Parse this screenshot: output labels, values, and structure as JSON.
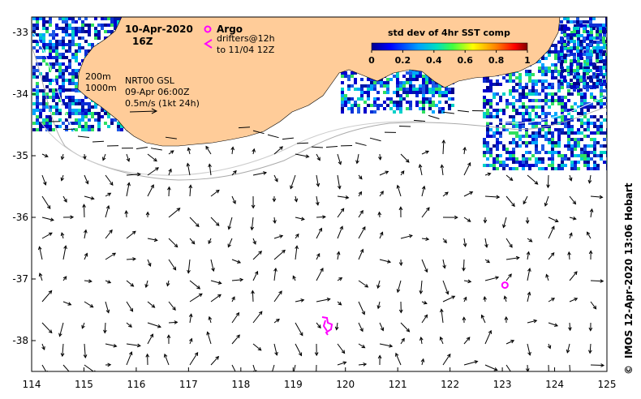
{
  "map": {
    "date": "10-Apr-2020",
    "hour": "16Z",
    "argo_label": "Argo",
    "drifters_label_1": "drifters@12h",
    "drifters_label_2": "to 11/04 12Z",
    "depth_200": "200m",
    "depth_1000": "1000m",
    "model_name": "NRT00 GSL",
    "model_time": "09-Apr 06:00Z",
    "scale_label": "0.5m/s (1kt 24h)",
    "colorbar_title": "std dev of 4hr SST comp",
    "colorbar_ticks": [
      "0",
      "0.2",
      "0.4",
      "0.6",
      "0.8",
      "1"
    ],
    "credit": "IMOS 12-Apr-2020 13:06 Hobart",
    "credit_symbol": "©",
    "x_ticks": [
      "114",
      "115",
      "116",
      "117",
      "118",
      "119",
      "120",
      "121",
      "122",
      "123",
      "124",
      "125"
    ],
    "y_ticks": [
      "-33",
      "-34",
      "-35",
      "-36",
      "-37",
      "-38"
    ],
    "land_color": "#ffcc99",
    "argo_color": "#ff00ff",
    "argo_float": {
      "lon": 123.05,
      "lat": -37.1
    }
  }
}
